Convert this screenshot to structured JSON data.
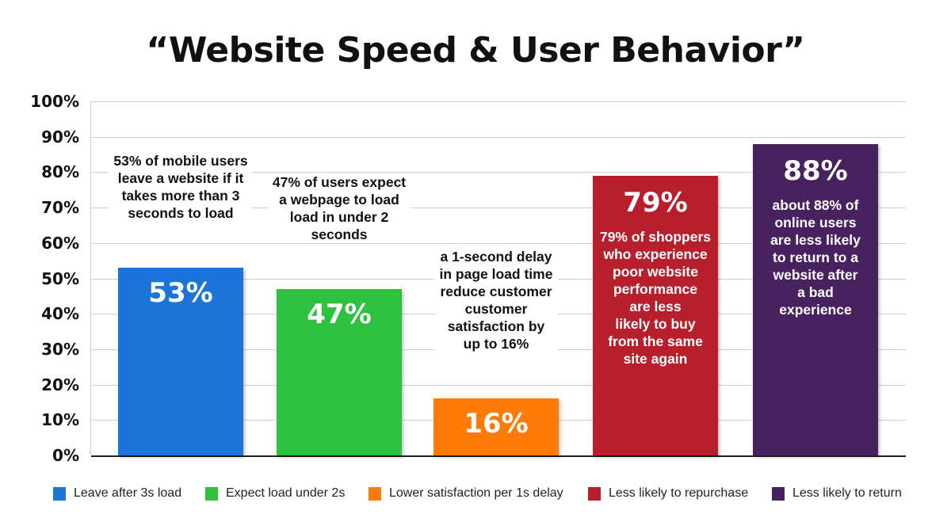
{
  "chart_data": {
    "type": "bar",
    "title": "“Website Speed & User Behavior”",
    "xlabel": "",
    "ylabel": "",
    "ylim": [
      0,
      100
    ],
    "yticks": [
      "0%",
      "10%",
      "20%",
      "30%",
      "40%",
      "50%",
      "60%",
      "70%",
      "80%",
      "90%",
      "100%"
    ],
    "grid": true,
    "legend_position": "bottom",
    "categories": [
      "Leave after 3s load",
      "Expect load under 2s",
      "Lower satisfaction per 1s delay",
      "Less likely to repurchase",
      "Less likely to return"
    ],
    "values": [
      53,
      47,
      16,
      79,
      88
    ],
    "value_labels": [
      "53%",
      "47%",
      "16%",
      "79%",
      "88%"
    ],
    "colors": [
      "#1b74d8",
      "#2ec13f",
      "#ff7a06",
      "#b71f2d",
      "#48215f"
    ],
    "annotations": [
      "53% of mobile users\nleave a website if it\ntakes more than 3\nseconds to load",
      "47% of users expect\na webpage to load\nload in under 2\nseconds",
      "a 1-second delay\nin page load time\nreduce customer\ncustomer\nsatisfaction by\nup to 16%",
      "79% of shoppers\nwho experience\npoor website\nperformance\nare less\nlikely to buy\nfrom the same\nsite again",
      "about 88% of\nonline users\nare less likely\nto return to a\nwebsite after\na bad\nexperience"
    ],
    "annotation_inside": [
      false,
      false,
      false,
      true,
      true
    ]
  }
}
